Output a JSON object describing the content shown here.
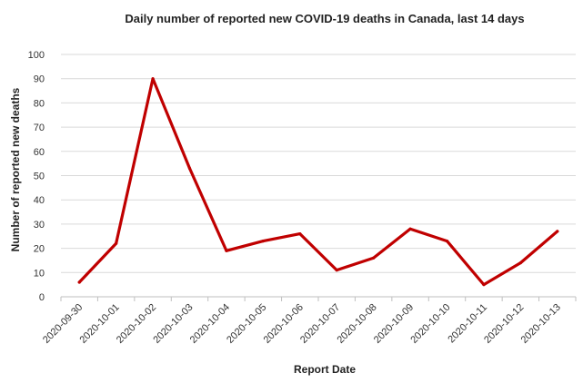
{
  "chart_data": {
    "type": "line",
    "title": "Daily number of reported new COVID-19 deaths in Canada, last 14 days",
    "xlabel": "Report Date",
    "ylabel": "Number of reported new deaths",
    "ylim": [
      0,
      100
    ],
    "yticks": [
      0,
      10,
      20,
      30,
      40,
      50,
      60,
      70,
      80,
      90,
      100
    ],
    "grid": true,
    "legend": "none",
    "categories": [
      "2020-09-30",
      "2020-10-01",
      "2020-10-02",
      "2020-10-03",
      "2020-10-04",
      "2020-10-05",
      "2020-10-06",
      "2020-10-07",
      "2020-10-08",
      "2020-10-09",
      "2020-10-10",
      "2020-10-11",
      "2020-10-12",
      "2020-10-13"
    ],
    "series": [
      {
        "values": [
          6,
          22,
          90,
          53,
          19,
          23,
          26,
          11,
          16,
          28,
          23,
          5,
          14,
          27
        ],
        "color": "#c00000"
      }
    ]
  }
}
